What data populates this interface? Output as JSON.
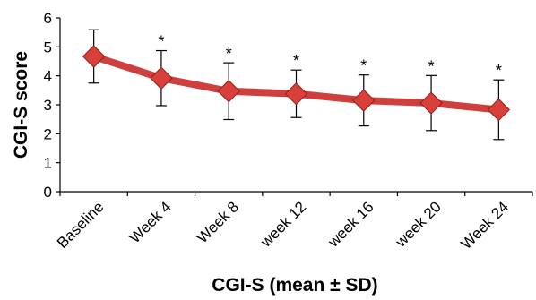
{
  "chart_data": {
    "type": "line",
    "categories": [
      "Baseline",
      "Week 4",
      "Week 8",
      "week 12",
      "week 16",
      "week 20",
      "Week 24"
    ],
    "values": [
      4.67,
      3.92,
      3.47,
      3.38,
      3.15,
      3.06,
      2.83
    ],
    "error_sd": [
      0.92,
      0.95,
      0.98,
      0.82,
      0.88,
      0.95,
      1.03
    ],
    "significance_markers": [
      "",
      "*",
      "*",
      "*",
      "*",
      "*",
      "*"
    ],
    "ylabel": "CGI-S score",
    "xlabel": "CGI-S (mean ± SD)",
    "ylim": [
      0,
      6
    ],
    "yticks": [
      "0",
      "1",
      "2",
      "3",
      "4",
      "5",
      "6"
    ],
    "grid": false,
    "colors": {
      "line": "#c9302c",
      "marker": "#d9403a",
      "marker_edge": "#8f1f1a",
      "errorbar": "#000000"
    }
  }
}
